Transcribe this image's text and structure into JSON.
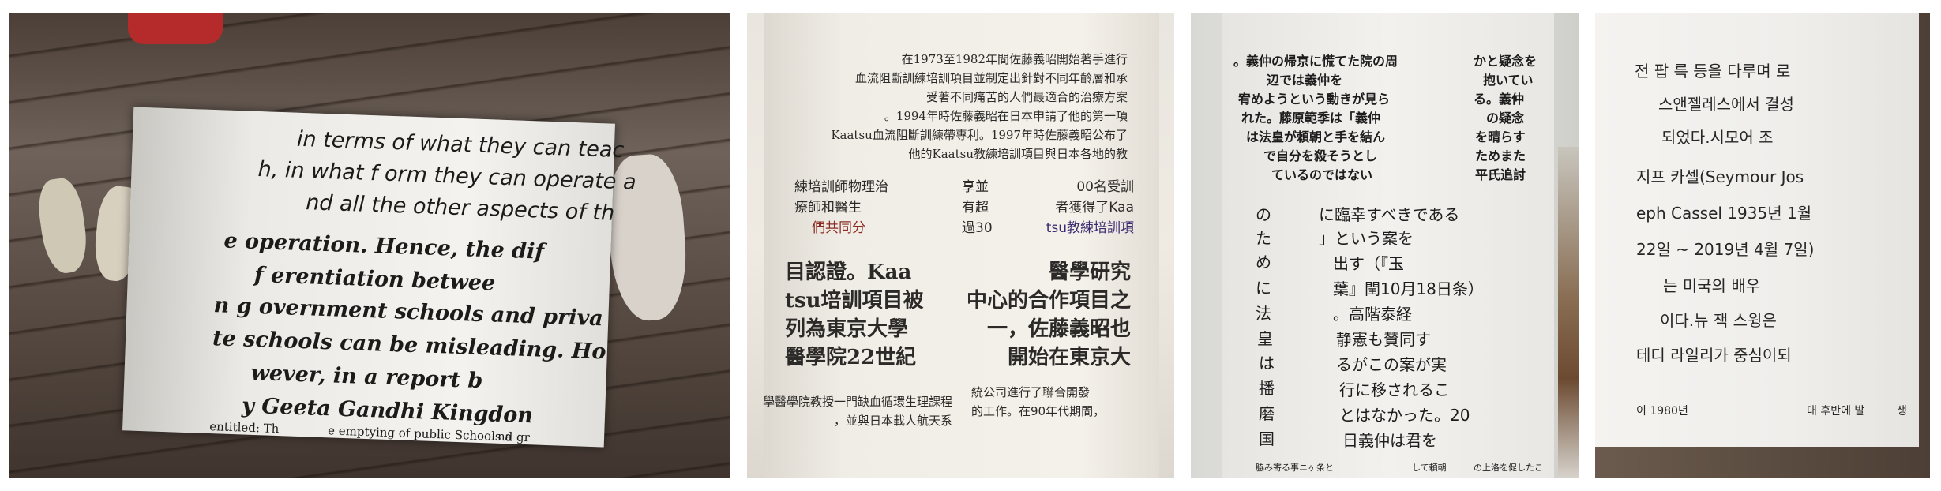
{
  "panel1": {
    "lines": [
      "in terms of  what they  can teac",
      "h, in what f orm they  can operate a",
      "nd all the other aspects of  th",
      "e operation. Hence, the dif",
      "f erentiation betwee",
      "n g overnment schools and priva",
      "te schools can be misleading. Ho",
      "wever, in a report b",
      "y  Geeta Gandhi Kingdon",
      "entitled: Th",
      "e emptying of public Schools a",
      "nd gr"
    ]
  },
  "panel2": {
    "top_lines": [
      "在1973至1982年間佐藤義昭開始著手進行",
      "血流阻斷訓練培訓項目並制定出針對不同年齡層和承",
      "受著不同痛苦的人們最適合的治療方案",
      "。1994年時佐藤義昭在日本申請了他的第一項",
      "Kaatsu血流阻斷訓練帶專利。1997年時佐藤義昭公布了",
      "他的Kaatsu教練培訓項目與日本各地的教"
    ],
    "col_a": [
      "練培訓師物理治",
      "療師和醫生",
      "們共同分"
    ],
    "col_b": [
      "享並",
      "有超",
      "過30"
    ],
    "col_c": [
      "00名受訓",
      "者獲得了Kaa",
      "tsu教練培訓項"
    ],
    "bold_left": [
      "目認證。Kaa",
      "tsu培訓項目被",
      "列為東京大學",
      "醫學院22世紀"
    ],
    "bold_right": [
      "醫學研究",
      "中心的合作項目之",
      "一，佐藤義昭也",
      "開始在東京大"
    ],
    "bottom_left": [
      "學醫學院教授一門缺血循環生理課程",
      "，並與日本載人航天系"
    ],
    "bottom_right": [
      "統公司進行了聯合開發",
      "的工作。在90年代期間，"
    ],
    "accent_red": "#8a2a20",
    "accent_blue": "#3a2c6e"
  },
  "panel3": {
    "top_left": [
      "。義仲の帰京に慌てた院の周",
      "辺では義仲を",
      "宥めようという動きが見ら",
      "れた。藤原範季は「義仲",
      "は法皇が頼朝と手を結ん",
      "で自分を殺そうとし",
      "ているのではない"
    ],
    "top_right": [
      "かと疑念を",
      "抱いてい",
      "る。義仲",
      "の疑念",
      "を晴らす",
      "ためまた",
      "平氏追討"
    ],
    "vertical": [
      "の",
      "た",
      "め",
      "に",
      "法",
      "皇",
      "は",
      "播",
      "磨",
      "国"
    ],
    "main": [
      "に臨幸すべきである",
      "」という案を",
      "出す（『玉",
      "葉』閏10月18日条）",
      "。高階泰経",
      "静憲も賛同す",
      "るがこの案が実",
      "行に移されるこ",
      "とはなかった。20",
      "日義仲は君を"
    ],
    "bottom": [
      "脇み寄る事ニヶ条と",
      "して頼朝",
      "の上洛を促したこ"
    ]
  },
  "panel4": {
    "lines": [
      "전 팝 륵 등을 다루며 로",
      "스앤젤레스에서 결성",
      "되었다.시모어 조",
      "지프 카셀(Seymour Jos",
      "eph Cassel 1935년 1월",
      "22일 ~ 2019년 4월 7일)",
      "는 미국의 배우",
      "이다.뉴 잭 스윙은",
      "테디 라일리가 중심이되"
    ],
    "bottom_left": "이 1980년",
    "bottom_mid": "대 후반에 발",
    "bottom_right": "생"
  }
}
